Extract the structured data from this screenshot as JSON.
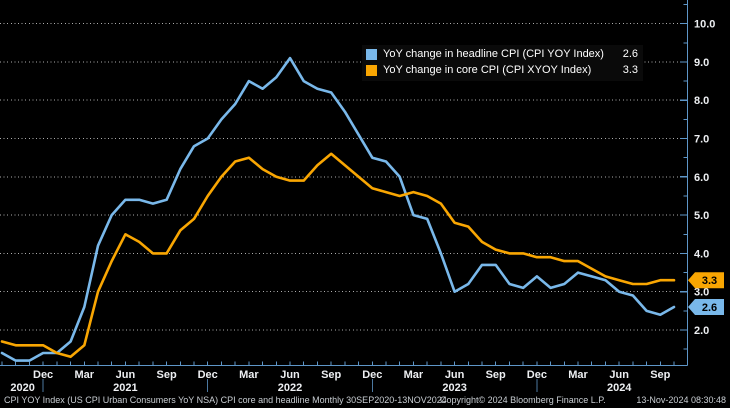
{
  "colors": {
    "background": "#000000",
    "axis": "#5E96C8",
    "grid": "#D9D9D9",
    "headline_blue": "#79B8EA",
    "core_orange": "#F9A602"
  },
  "legend": {
    "items": [
      {
        "swatch_color": "#79B8EA",
        "label": "YoY change in headline CPI (CPI YOY Index)",
        "value": "2.6"
      },
      {
        "swatch_color": "#F9A602",
        "label": "YoY change in core CPI (CPI XYOY Index)",
        "value": "3.3"
      }
    ]
  },
  "footer": {
    "left": "CPI YOY Index (US CPI Urban Consumers YoY NSA) CPI core and headline  Monthly 30SEP2020-13NOV2024",
    "center": "Copyright© 2024 Bloomberg Finance L.P.",
    "right": "13-Nov-2024 08:30:48"
  },
  "chart_data": {
    "type": "line",
    "title": "",
    "xlabel": "",
    "ylabel": "",
    "x_unit": "month",
    "x_range": [
      "Sep 2020",
      "Oct 2024"
    ],
    "ylim": [
      1.05,
      10.6
    ],
    "grid": "horizontal-dotted",
    "legend_position": "top-right-inside",
    "yticks": [
      2,
      3,
      4,
      5,
      6,
      7,
      8,
      9,
      10
    ],
    "ytick_labels": [
      "2.0",
      "3.0",
      "4.0",
      "5.0",
      "6.0",
      "7.0",
      "8.0",
      "9.0",
      "10.0"
    ],
    "x_ticks": [
      {
        "m": 3,
        "label": "Dec"
      },
      {
        "m": 6,
        "label": "Mar"
      },
      {
        "m": 9,
        "label": "Jun"
      },
      {
        "m": 12,
        "label": "Sep"
      },
      {
        "m": 15,
        "label": "Dec"
      },
      {
        "m": 18,
        "label": "Mar"
      },
      {
        "m": 21,
        "label": "Jun"
      },
      {
        "m": 24,
        "label": "Sep"
      },
      {
        "m": 27,
        "label": "Dec"
      },
      {
        "m": 30,
        "label": "Mar"
      },
      {
        "m": 33,
        "label": "Jun"
      },
      {
        "m": 36,
        "label": "Sep"
      },
      {
        "m": 39,
        "label": "Dec"
      },
      {
        "m": 42,
        "label": "Mar"
      },
      {
        "m": 45,
        "label": "Jun"
      },
      {
        "m": 48,
        "label": "Sep"
      }
    ],
    "x_years": [
      {
        "m": 1.5,
        "label": "2020"
      },
      {
        "m": 9,
        "label": "2021"
      },
      {
        "m": 21,
        "label": "2022"
      },
      {
        "m": 33,
        "label": "2023"
      },
      {
        "m": 45,
        "label": "2024"
      }
    ],
    "x_year_separators": [
      3,
      15,
      27,
      39
    ],
    "series": [
      {
        "id": "headline",
        "name": "YoY change in headline CPI (CPI YOY Index)",
        "color": "#79B8EA",
        "last_value_label": "2.6",
        "values": [
          1.4,
          1.2,
          1.2,
          1.4,
          1.4,
          1.7,
          2.6,
          4.2,
          5.0,
          5.4,
          5.4,
          5.3,
          5.4,
          6.2,
          6.8,
          7.0,
          7.5,
          7.9,
          8.5,
          8.3,
          8.6,
          9.1,
          8.5,
          8.3,
          8.2,
          7.7,
          7.1,
          6.5,
          6.4,
          6.0,
          5.0,
          4.9,
          4.0,
          3.0,
          3.2,
          3.7,
          3.7,
          3.2,
          3.1,
          3.4,
          3.1,
          3.2,
          3.5,
          3.4,
          3.3,
          3.0,
          2.9,
          2.5,
          2.4,
          2.6
        ]
      },
      {
        "id": "core",
        "name": "YoY change in core CPI (CPI XYOY Index)",
        "color": "#F9A602",
        "last_value_label": "3.3",
        "values": [
          1.7,
          1.6,
          1.6,
          1.6,
          1.4,
          1.3,
          1.6,
          3.0,
          3.8,
          4.5,
          4.3,
          4.0,
          4.0,
          4.6,
          4.9,
          5.5,
          6.0,
          6.4,
          6.5,
          6.2,
          6.0,
          5.9,
          5.9,
          6.3,
          6.6,
          6.3,
          6.0,
          5.7,
          5.6,
          5.5,
          5.6,
          5.5,
          5.3,
          4.8,
          4.7,
          4.3,
          4.1,
          4.0,
          4.0,
          3.9,
          3.9,
          3.8,
          3.8,
          3.6,
          3.4,
          3.3,
          3.2,
          3.2,
          3.3,
          3.3
        ]
      }
    ]
  }
}
